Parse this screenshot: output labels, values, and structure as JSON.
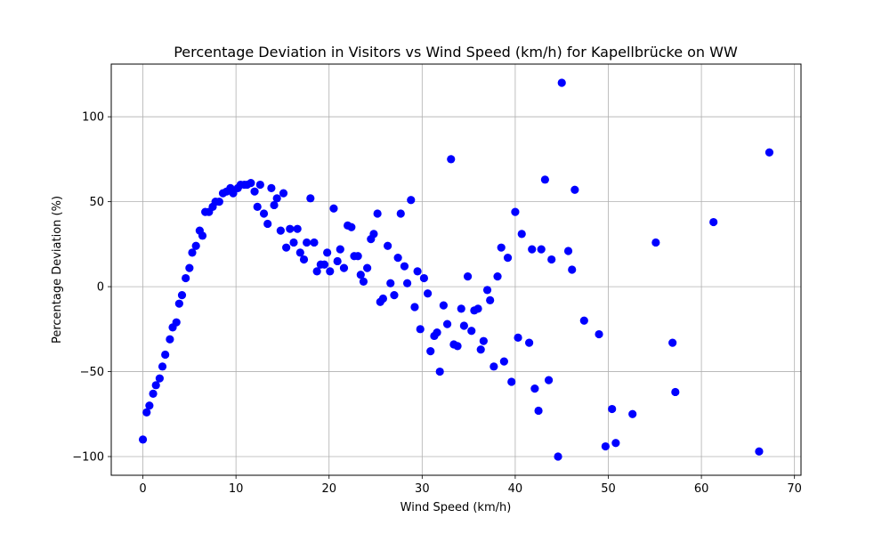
{
  "chart_data": {
    "type": "scatter",
    "title": "Percentage Deviation in Visitors vs Wind Speed (km/h) for Kapellbrücke on WW",
    "xlabel": "Wind Speed (km/h)",
    "ylabel": "Percentage Deviation (%)",
    "xlim": [
      -3.4,
      70.7
    ],
    "ylim": [
      -111,
      131
    ],
    "xticks": [
      0,
      10,
      20,
      30,
      40,
      50,
      60,
      70
    ],
    "yticks": [
      -100,
      -50,
      0,
      50,
      100
    ],
    "grid": true,
    "marker_color": "#0000ff",
    "points": [
      [
        0.0,
        -90
      ],
      [
        0.4,
        -74
      ],
      [
        0.7,
        -70
      ],
      [
        1.1,
        -63
      ],
      [
        1.4,
        -58
      ],
      [
        1.8,
        -54
      ],
      [
        2.1,
        -47
      ],
      [
        2.4,
        -40
      ],
      [
        2.9,
        -31
      ],
      [
        3.2,
        -24
      ],
      [
        3.6,
        -21
      ],
      [
        3.9,
        -10
      ],
      [
        4.2,
        -5
      ],
      [
        4.6,
        5
      ],
      [
        5.0,
        11
      ],
      [
        5.3,
        20
      ],
      [
        5.7,
        24
      ],
      [
        6.1,
        33
      ],
      [
        6.4,
        30
      ],
      [
        6.7,
        44
      ],
      [
        7.1,
        44
      ],
      [
        7.5,
        47
      ],
      [
        7.8,
        50
      ],
      [
        8.2,
        50
      ],
      [
        8.6,
        55
      ],
      [
        9.0,
        56
      ],
      [
        9.4,
        58
      ],
      [
        9.7,
        55
      ],
      [
        10.2,
        58
      ],
      [
        10.5,
        60
      ],
      [
        10.9,
        60
      ],
      [
        11.2,
        60
      ],
      [
        11.6,
        61
      ],
      [
        12.0,
        56
      ],
      [
        12.3,
        47
      ],
      [
        12.6,
        60
      ],
      [
        13.0,
        43
      ],
      [
        13.4,
        37
      ],
      [
        13.8,
        58
      ],
      [
        14.1,
        48
      ],
      [
        14.4,
        52
      ],
      [
        14.8,
        33
      ],
      [
        15.1,
        55
      ],
      [
        15.4,
        23
      ],
      [
        15.8,
        34
      ],
      [
        16.2,
        26
      ],
      [
        16.6,
        34
      ],
      [
        16.9,
        20
      ],
      [
        17.3,
        16
      ],
      [
        17.6,
        26
      ],
      [
        18.0,
        52
      ],
      [
        18.4,
        26
      ],
      [
        18.7,
        9
      ],
      [
        19.1,
        13
      ],
      [
        19.5,
        13
      ],
      [
        19.8,
        20
      ],
      [
        20.1,
        9
      ],
      [
        20.5,
        46
      ],
      [
        20.9,
        15
      ],
      [
        21.2,
        22
      ],
      [
        21.6,
        11
      ],
      [
        22.0,
        36
      ],
      [
        22.4,
        35
      ],
      [
        22.7,
        18
      ],
      [
        23.1,
        18
      ],
      [
        23.4,
        7
      ],
      [
        23.7,
        3
      ],
      [
        24.1,
        11
      ],
      [
        24.5,
        28
      ],
      [
        24.8,
        31
      ],
      [
        25.2,
        43
      ],
      [
        25.5,
        -9
      ],
      [
        25.8,
        -7
      ],
      [
        26.3,
        24
      ],
      [
        26.6,
        2
      ],
      [
        27.0,
        -5
      ],
      [
        27.4,
        17
      ],
      [
        27.7,
        43
      ],
      [
        28.1,
        12
      ],
      [
        28.4,
        2
      ],
      [
        28.8,
        51
      ],
      [
        29.2,
        -12
      ],
      [
        29.5,
        9
      ],
      [
        29.8,
        -25
      ],
      [
        30.2,
        5
      ],
      [
        30.6,
        -4
      ],
      [
        30.9,
        -38
      ],
      [
        31.3,
        -29
      ],
      [
        31.6,
        -27
      ],
      [
        31.9,
        -50
      ],
      [
        32.3,
        -11
      ],
      [
        32.7,
        -22
      ],
      [
        33.1,
        75
      ],
      [
        33.4,
        -34
      ],
      [
        33.8,
        -35
      ],
      [
        34.2,
        -13
      ],
      [
        34.5,
        -23
      ],
      [
        34.9,
        6
      ],
      [
        35.3,
        -26
      ],
      [
        35.6,
        -14
      ],
      [
        36.0,
        -13
      ],
      [
        36.3,
        -37
      ],
      [
        36.6,
        -32
      ],
      [
        37.0,
        -2
      ],
      [
        37.3,
        -8
      ],
      [
        37.7,
        -47
      ],
      [
        38.1,
        6
      ],
      [
        38.5,
        23
      ],
      [
        38.8,
        -44
      ],
      [
        39.2,
        17
      ],
      [
        39.6,
        -56
      ],
      [
        40.0,
        44
      ],
      [
        40.3,
        -30
      ],
      [
        40.7,
        31
      ],
      [
        41.5,
        -33
      ],
      [
        41.8,
        22
      ],
      [
        42.1,
        -60
      ],
      [
        42.5,
        -73
      ],
      [
        42.8,
        22
      ],
      [
        43.2,
        63
      ],
      [
        43.6,
        -55
      ],
      [
        43.9,
        16
      ],
      [
        44.6,
        -100
      ],
      [
        45.0,
        120
      ],
      [
        45.7,
        21
      ],
      [
        46.1,
        10
      ],
      [
        46.4,
        57
      ],
      [
        47.4,
        -20
      ],
      [
        49.0,
        -28
      ],
      [
        49.7,
        -94
      ],
      [
        50.4,
        -72
      ],
      [
        50.8,
        -92
      ],
      [
        52.6,
        -75
      ],
      [
        55.1,
        26
      ],
      [
        56.9,
        -33
      ],
      [
        57.2,
        -62
      ],
      [
        61.3,
        38
      ],
      [
        66.2,
        -97
      ],
      [
        67.3,
        79
      ]
    ]
  }
}
